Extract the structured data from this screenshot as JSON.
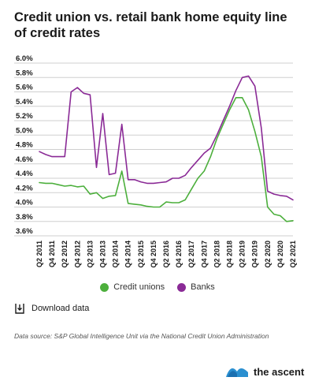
{
  "title": "Credit union vs. retail bank home equity line of credit rates",
  "legend": {
    "items": [
      {
        "label": "Credit unions",
        "color": "#4caf3c"
      },
      {
        "label": "Banks",
        "color": "#8a2a96"
      }
    ]
  },
  "download": {
    "label": "Download data",
    "icon": "download-icon"
  },
  "source": "Data source: S&P Global Intelligence Unit via the National Credit Union Administration",
  "logo": {
    "text": "the ascent",
    "icon": "wave-logo-icon"
  },
  "chart_data": {
    "type": "line",
    "ylim": [
      3.6,
      6.0
    ],
    "y_ticks": [
      "6.0%",
      "5.8%",
      "5.6%",
      "5.4%",
      "5.2%",
      "5.0%",
      "4.8%",
      "4.6%",
      "4.4%",
      "4.2%",
      "4.0%",
      "3.8%",
      "3.6%"
    ],
    "y_tick_values": [
      6.0,
      5.8,
      5.6,
      5.4,
      5.2,
      5.0,
      4.8,
      4.6,
      4.4,
      4.2,
      4.0,
      3.8,
      3.6
    ],
    "x_tick_labels": [
      "Q2 2011",
      "Q4 2011",
      "Q2 2012",
      "Q4 2012",
      "Q2 2013",
      "Q4 2013",
      "Q2 2014",
      "Q4 2014",
      "Q2 2015",
      "Q4 2015",
      "Q2 2016",
      "Q4 2016",
      "Q2 2017",
      "Q4 2017",
      "Q2 2018",
      "Q4 2018",
      "Q2 2019",
      "Q4 2019",
      "Q2 2020",
      "Q4 2020",
      "Q2 2021"
    ],
    "x": [
      "Q2 2011",
      "Q3 2011",
      "Q4 2011",
      "Q1 2012",
      "Q2 2012",
      "Q3 2012",
      "Q4 2012",
      "Q1 2013",
      "Q2 2013",
      "Q3 2013",
      "Q4 2013",
      "Q1 2014",
      "Q2 2014",
      "Q3 2014",
      "Q4 2014",
      "Q1 2015",
      "Q2 2015",
      "Q3 2015",
      "Q4 2015",
      "Q1 2016",
      "Q2 2016",
      "Q3 2016",
      "Q4 2016",
      "Q1 2017",
      "Q2 2017",
      "Q3 2017",
      "Q4 2017",
      "Q1 2018",
      "Q2 2018",
      "Q3 2018",
      "Q4 2018",
      "Q1 2019",
      "Q2 2019",
      "Q3 2019",
      "Q4 2019",
      "Q1 2020",
      "Q2 2020",
      "Q3 2020",
      "Q4 2020",
      "Q1 2021",
      "Q2 2021"
    ],
    "series": [
      {
        "name": "Credit unions",
        "color": "#4caf3c",
        "values": [
          4.34,
          4.33,
          4.33,
          4.31,
          4.29,
          4.3,
          4.28,
          4.29,
          4.18,
          4.2,
          4.12,
          4.15,
          4.16,
          4.5,
          4.05,
          4.04,
          4.03,
          4.01,
          4.0,
          4.0,
          4.07,
          4.06,
          4.06,
          4.1,
          4.25,
          4.4,
          4.5,
          4.7,
          4.95,
          5.15,
          5.35,
          5.52,
          5.52,
          5.35,
          5.05,
          4.7,
          4.0,
          3.9,
          3.88,
          3.8,
          3.81
        ]
      },
      {
        "name": "Banks",
        "color": "#8a2a96",
        "values": [
          4.77,
          4.73,
          4.7,
          4.7,
          4.7,
          5.6,
          5.66,
          5.58,
          5.56,
          4.55,
          5.3,
          4.45,
          4.47,
          5.15,
          4.38,
          4.38,
          4.35,
          4.33,
          4.33,
          4.34,
          4.35,
          4.4,
          4.4,
          4.44,
          4.55,
          4.65,
          4.75,
          4.82,
          5.0,
          5.2,
          5.4,
          5.62,
          5.8,
          5.82,
          5.68,
          5.1,
          4.22,
          4.18,
          4.16,
          4.15,
          4.1
        ]
      }
    ]
  }
}
